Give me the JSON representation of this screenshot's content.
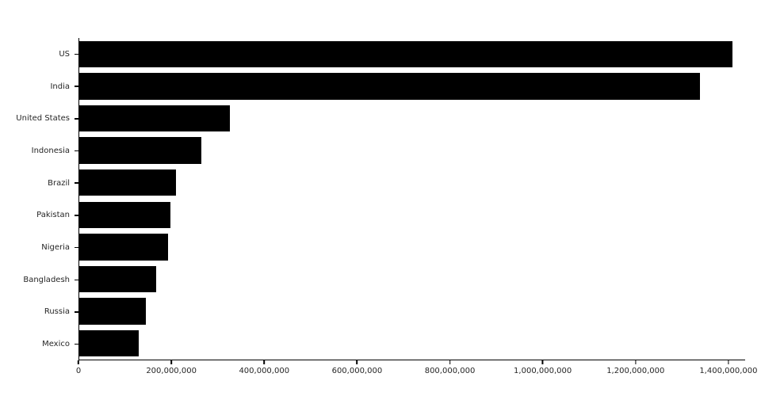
{
  "chart_data": {
    "type": "bar",
    "orientation": "horizontal",
    "title": "",
    "xlabel": "",
    "ylabel": "",
    "categories": [
      "US",
      "India",
      "United States",
      "Indonesia",
      "Brazil",
      "Pakistan",
      "Nigeria",
      "Bangladesh",
      "Russia",
      "Mexico"
    ],
    "values": [
      1409000000,
      1339000000,
      325000000,
      264000000,
      209000000,
      197000000,
      191000000,
      165000000,
      144000000,
      129000000
    ],
    "xlim": [
      0,
      1436000000
    ],
    "x_ticks": [
      0,
      200000000,
      400000000,
      600000000,
      800000000,
      1000000000,
      1200000000,
      1400000000
    ],
    "x_tick_labels": [
      "0",
      "200,000,000",
      "400,000,000",
      "600,000,000",
      "800,000,000",
      "1,000,000,000",
      "1,200,000,000",
      "1,400,000,000"
    ],
    "bar_color": "#000000",
    "axis_color": "#000000",
    "label_color": "#262626",
    "grid": false,
    "legend": false
  }
}
